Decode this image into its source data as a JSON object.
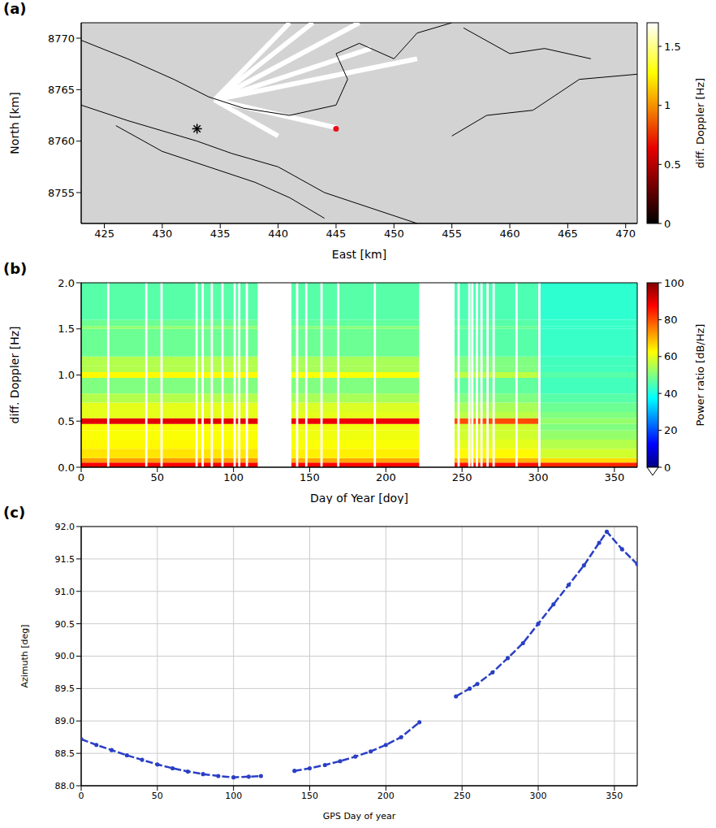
{
  "chart_data": [
    {
      "type": "map",
      "panel": "(a)",
      "x_label": "East [km]",
      "y_label": "North [km]",
      "xlim": [
        423,
        471
      ],
      "xticks": [
        425,
        430,
        435,
        440,
        445,
        450,
        455,
        460,
        465,
        470
      ],
      "ylim": [
        8752,
        8771.5
      ],
      "yticks": [
        8755,
        8760,
        8765,
        8770
      ],
      "grid": false,
      "contours": [
        [
          [
            423,
            8769.8
          ],
          [
            427,
            8768
          ],
          [
            431,
            8766
          ],
          [
            434,
            8764.3
          ],
          [
            437,
            8763.2
          ],
          [
            441,
            8762.5
          ],
          [
            445,
            8763.5
          ],
          [
            446,
            8766
          ],
          [
            445,
            8768.5
          ],
          [
            447,
            8769.5
          ],
          [
            450,
            8768
          ],
          [
            452,
            8770.5
          ],
          [
            455,
            8771.5
          ]
        ],
        [
          [
            423,
            8763.5
          ],
          [
            427,
            8762
          ],
          [
            430,
            8761
          ],
          [
            433,
            8760
          ],
          [
            436,
            8758.8
          ],
          [
            440,
            8757.5
          ],
          [
            444,
            8755
          ],
          [
            448,
            8753.5
          ],
          [
            452,
            8752
          ]
        ],
        [
          [
            426,
            8761.5
          ],
          [
            430,
            8759
          ],
          [
            434,
            8757.5
          ],
          [
            438,
            8756
          ],
          [
            441,
            8754.5
          ],
          [
            444,
            8752.5
          ]
        ],
        [
          [
            455,
            8760.5
          ],
          [
            458,
            8762.5
          ],
          [
            462,
            8763
          ],
          [
            466,
            8766
          ],
          [
            471,
            8766.5
          ]
        ],
        [
          [
            456,
            8771
          ],
          [
            460,
            8768.5
          ],
          [
            463,
            8769
          ],
          [
            467,
            8768
          ]
        ]
      ],
      "wedges": [
        [
          [
            434.5,
            8764
          ],
          [
            441,
            8771.5
          ]
        ],
        [
          [
            434.5,
            8764
          ],
          [
            443,
            8771.5
          ]
        ],
        [
          [
            434.5,
            8764
          ],
          [
            447,
            8771.5
          ]
        ],
        [
          [
            434.5,
            8764
          ],
          [
            448,
            8769
          ]
        ],
        [
          [
            434.5,
            8764
          ],
          [
            452,
            8768
          ]
        ],
        [
          [
            434.5,
            8764
          ],
          [
            445,
            8761.3
          ]
        ],
        [
          [
            434.5,
            8764
          ],
          [
            440,
            8760.5
          ]
        ]
      ],
      "points": [
        {
          "x": 433,
          "y": 8761.2,
          "marker": "asterisk",
          "color": "#000000"
        },
        {
          "x": 445,
          "y": 8761.2,
          "marker": "circle",
          "color": "#e8101a"
        }
      ],
      "colorbar": {
        "label": "diff. Doppler [Hz]",
        "range": [
          0,
          1.7
        ],
        "ticks": [
          0,
          0.5,
          1,
          1.5
        ]
      }
    },
    {
      "type": "heatmap",
      "panel": "(b)",
      "x_label": "Day of Year [doy]",
      "y_label": "diff. Doppler [Hz]",
      "xlim": [
        0,
        365
      ],
      "xticks": [
        0,
        50,
        100,
        150,
        200,
        250,
        300,
        350
      ],
      "ylim": [
        0,
        2
      ],
      "yticks": [
        {
          "value": 0,
          "label": "0.0"
        },
        0.5,
        {
          "value": 1,
          "label": "1.0"
        },
        1.5,
        {
          "value": 2,
          "label": "2.0"
        }
      ],
      "grid": false,
      "segments": [
        [
          0,
          116
        ],
        [
          138,
          222
        ],
        [
          245,
          300
        ],
        [
          300,
          365
        ]
      ],
      "doppler_edges": [
        0,
        0.05,
        0.1,
        0.2,
        0.3,
        0.4,
        0.47,
        0.53,
        0.6,
        0.7,
        0.8,
        0.97,
        1.03,
        1.1,
        1.2,
        1.5,
        1.53,
        1.6,
        2.0
      ],
      "cells": [
        [
          88,
          72,
          65,
          63,
          62,
          62,
          90,
          60,
          60,
          55,
          50,
          63,
          55,
          55,
          48,
          52,
          48,
          46
        ],
        [
          87,
          71,
          64,
          62,
          61,
          61,
          89,
          60,
          59,
          54,
          50,
          62,
          54,
          54,
          48,
          51,
          47,
          46
        ],
        [
          86,
          70,
          63,
          60,
          58,
          58,
          80,
          56,
          54,
          50,
          47,
          56,
          50,
          50,
          46,
          48,
          46,
          45
        ],
        [
          84,
          66,
          58,
          55,
          52,
          50,
          52,
          50,
          48,
          46,
          44,
          46,
          44,
          44,
          43,
          43,
          43,
          42
        ]
      ],
      "gaps": [
        [
          116,
          138
        ],
        [
          222,
          245
        ],
        [
          17,
          18.5
        ],
        [
          42,
          43.5
        ],
        [
          52,
          53.5
        ],
        [
          75,
          76.5
        ],
        [
          79,
          80.5
        ],
        [
          85,
          86.5
        ],
        [
          92,
          93.5
        ],
        [
          100,
          101.5
        ],
        [
          103,
          104.5
        ],
        [
          108,
          109.5
        ],
        [
          141,
          142.5
        ],
        [
          147,
          148.5
        ],
        [
          157,
          158.5
        ],
        [
          168,
          169.5
        ],
        [
          192,
          193.5
        ],
        [
          247,
          248.5
        ],
        [
          254,
          255.5
        ],
        [
          256,
          257.5
        ],
        [
          259,
          260.5
        ],
        [
          262,
          263.5
        ],
        [
          266,
          267.5
        ],
        [
          270,
          271.5
        ],
        [
          285,
          286.5
        ],
        [
          300,
          301.5
        ]
      ],
      "colorbar": {
        "label": "Power ratio [dB/Hz]",
        "range": [
          0,
          100
        ],
        "ticks": [
          0,
          20,
          40,
          60,
          80,
          100
        ]
      }
    },
    {
      "type": "line",
      "panel": "(c)",
      "x_label": "GPS Day of year",
      "y_label": "Azimuth [deg]",
      "xlim": [
        0,
        365
      ],
      "xticks": [
        0,
        50,
        100,
        150,
        200,
        250,
        300,
        350
      ],
      "ylim": [
        88,
        92
      ],
      "yticks": [
        {
          "value": 88,
          "label": "88.0"
        },
        88.5,
        {
          "value": 89,
          "label": "89.0"
        },
        89.5,
        {
          "value": 90,
          "label": "90.0"
        },
        90.5,
        {
          "value": 91,
          "label": "91.0"
        },
        91.5,
        {
          "value": 92,
          "label": "92.0"
        }
      ],
      "grid": true,
      "color": "#2a3fc4",
      "marker": "circle",
      "line_style": "dashed",
      "x": [
        0,
        10,
        20,
        30,
        40,
        50,
        60,
        70,
        80,
        90,
        100,
        110,
        118,
        130,
        140,
        150,
        160,
        170,
        180,
        190,
        200,
        210,
        222,
        234,
        246,
        255,
        260,
        270,
        280,
        290,
        300,
        310,
        320,
        330,
        340,
        345,
        355,
        365
      ],
      "values": [
        88.72,
        88.63,
        88.55,
        88.47,
        88.4,
        88.33,
        88.27,
        88.22,
        88.18,
        88.15,
        88.13,
        88.14,
        88.15,
        null,
        88.23,
        88.27,
        88.32,
        88.38,
        88.45,
        88.53,
        88.63,
        88.75,
        88.98,
        null,
        89.38,
        89.5,
        89.57,
        89.75,
        89.97,
        90.2,
        90.5,
        90.8,
        91.1,
        91.4,
        91.75,
        91.92,
        91.65,
        91.42
      ]
    }
  ]
}
